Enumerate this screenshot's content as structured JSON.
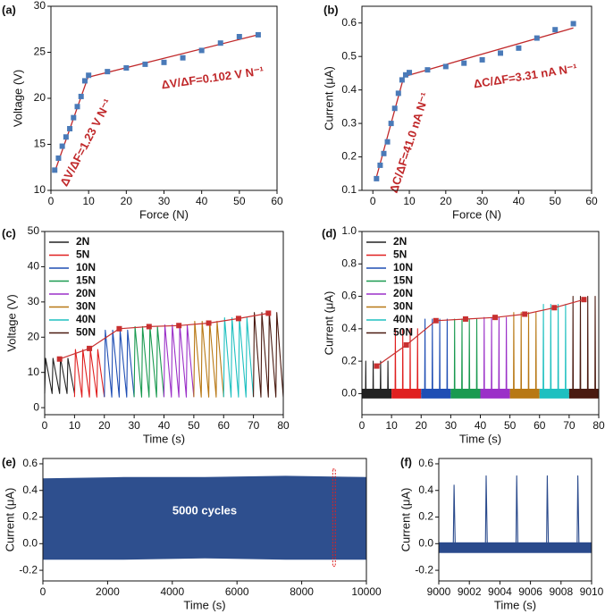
{
  "chart_data": [
    {
      "type": "scatter",
      "label": "(a)",
      "xlabel": "Force (N)",
      "ylabel": "Voltage (V)",
      "xlim": [
        0,
        60
      ],
      "xticks": [
        0,
        10,
        20,
        30,
        40,
        50,
        60
      ],
      "ylim": [
        10,
        30
      ],
      "yticks": [
        10,
        15,
        20,
        25,
        30
      ],
      "color": "#4a7ab8",
      "x": [
        1,
        2,
        3,
        4,
        5,
        6,
        7,
        8,
        9,
        10,
        15,
        20,
        25,
        30,
        35,
        40,
        45,
        50,
        55
      ],
      "values": [
        12.2,
        13.5,
        14.8,
        15.8,
        16.7,
        17.9,
        19.1,
        20.2,
        21.9,
        22.5,
        22.9,
        23.3,
        23.7,
        23.9,
        24.4,
        25.2,
        26.0,
        26.7,
        26.9
      ],
      "fits": [
        {
          "color": "#c0282a",
          "x": [
            1,
            10
          ],
          "values": [
            12.0,
            22.5
          ]
        },
        {
          "color": "#c0282a",
          "x": [
            10,
            55
          ],
          "values": [
            22.3,
            26.9
          ]
        }
      ],
      "annotations": [
        "ΔV/ΔF=1.23 V N⁻¹",
        "ΔV/ΔF=0.102 V N⁻¹"
      ]
    },
    {
      "type": "scatter",
      "label": "(b)",
      "xlabel": "Force (N)",
      "ylabel": "Current (μA)",
      "xlim": [
        -3,
        60
      ],
      "xticks": [
        0,
        10,
        20,
        30,
        40,
        50,
        60
      ],
      "ylim": [
        0.1,
        0.65
      ],
      "yticks": [
        0.1,
        0.2,
        0.3,
        0.4,
        0.5,
        0.6
      ],
      "color": "#4a7ab8",
      "x": [
        1,
        2,
        3,
        4,
        5,
        6,
        7,
        8,
        9,
        10,
        15,
        20,
        25,
        30,
        35,
        40,
        45,
        50,
        55
      ],
      "values": [
        0.135,
        0.175,
        0.21,
        0.245,
        0.3,
        0.345,
        0.39,
        0.43,
        0.445,
        0.452,
        0.46,
        0.47,
        0.48,
        0.49,
        0.51,
        0.525,
        0.555,
        0.58,
        0.598
      ],
      "fits": [
        {
          "color": "#c0282a",
          "x": [
            1,
            8.5
          ],
          "values": [
            0.14,
            0.44
          ]
        },
        {
          "color": "#c0282a",
          "x": [
            8.5,
            55
          ],
          "values": [
            0.44,
            0.585
          ]
        }
      ],
      "annotations": [
        "ΔC/ΔF=41.0 nA N⁻¹",
        "ΔC/ΔF=3.31 nA N⁻¹"
      ]
    },
    {
      "type": "line",
      "label": "(c)",
      "xlabel": "Time (s)",
      "ylabel": "Voltage (V)",
      "xlim": [
        0,
        80
      ],
      "xticks": [
        0,
        10,
        20,
        30,
        40,
        50,
        60,
        70,
        80
      ],
      "ylim": [
        -2,
        50
      ],
      "yticks": [
        0,
        10,
        20,
        30,
        40,
        50
      ],
      "series": [
        {
          "name": "2N",
          "color": "#222222",
          "x": [
            0,
            0.3,
            2.5,
            2.8,
            5,
            5.3,
            7.5,
            7.8,
            10
          ],
          "values": [
            4,
            14,
            4,
            14,
            4,
            14,
            4,
            14,
            4
          ]
        },
        {
          "name": "5N",
          "color": "#e02020",
          "x": [
            10,
            10.3,
            12.5,
            12.8,
            15,
            15.3,
            17.5,
            17.8,
            20
          ],
          "values": [
            3,
            16.5,
            3,
            16.5,
            3,
            16.5,
            3,
            16.5,
            3
          ]
        },
        {
          "name": "10N",
          "color": "#1f4eb4",
          "x": [
            20,
            20.3,
            22.5,
            22.8,
            25,
            25.3,
            27.5,
            27.8,
            30
          ],
          "values": [
            3,
            22,
            3,
            22,
            3,
            22,
            3,
            22,
            3
          ]
        },
        {
          "name": "15N",
          "color": "#1a9a50",
          "x": [
            30,
            30.3,
            32.5,
            32.8,
            35,
            35.3,
            37.5,
            37.8,
            40
          ],
          "values": [
            3,
            23,
            3,
            23,
            3,
            23,
            3,
            23,
            3
          ]
        },
        {
          "name": "20N",
          "color": "#9b30c8",
          "x": [
            40,
            40.3,
            42.5,
            42.8,
            45,
            45.3,
            47.5,
            47.8,
            50
          ],
          "values": [
            3,
            23.5,
            3,
            23.5,
            3,
            23.5,
            3,
            23.5,
            3
          ]
        },
        {
          "name": "30N",
          "color": "#b87814",
          "x": [
            50,
            50.3,
            52.5,
            52.8,
            55,
            55.3,
            57.5,
            57.8,
            60
          ],
          "values": [
            3,
            24.5,
            3,
            24.5,
            3,
            24.5,
            3,
            24.5,
            3
          ]
        },
        {
          "name": "40N",
          "color": "#1ec0c0",
          "x": [
            60,
            60.3,
            62.5,
            62.8,
            65,
            65.3,
            67.5,
            67.8,
            70
          ],
          "values": [
            3,
            25.5,
            3,
            25.5,
            3,
            25.5,
            3,
            25.5,
            3
          ]
        },
        {
          "name": "50N",
          "color": "#4a1a10",
          "x": [
            70,
            70.3,
            72.5,
            72.8,
            75,
            75.3,
            77.5,
            77.8,
            80
          ],
          "values": [
            3,
            27,
            3,
            27,
            3,
            27,
            3,
            27,
            3
          ]
        }
      ],
      "trend": {
        "color": "#c83030",
        "x": [
          5,
          15,
          25,
          35,
          45,
          55,
          65,
          75
        ],
        "values": [
          13.8,
          16.8,
          22.4,
          23.0,
          23.3,
          24.0,
          25.3,
          26.8
        ]
      }
    },
    {
      "type": "line",
      "label": "(d)",
      "xlabel": "Time (s)",
      "ylabel": "Current (μA)",
      "xlim": [
        0,
        80
      ],
      "xticks": [
        0,
        10,
        20,
        30,
        40,
        50,
        60,
        70,
        80
      ],
      "ylim": [
        -0.13,
        1
      ],
      "yticks": [
        {
          "value": 0,
          "label": "0.0"
        },
        0.2,
        0.4,
        0.6,
        0.8,
        {
          "value": 1,
          "label": "1.0"
        }
      ],
      "noise_band": [
        -0.03,
        0.03
      ],
      "series": [
        {
          "name": "2N",
          "color": "#222222",
          "x": [
            0,
            1.2,
            1.3,
            1.4,
            3.7,
            3.8,
            3.9,
            6.2,
            6.3,
            6.4,
            8.7,
            8.8,
            8.9,
            10
          ],
          "values": [
            0,
            0,
            0.2,
            0,
            0,
            0.2,
            0,
            0,
            0.2,
            0,
            0,
            0.2,
            0,
            0
          ]
        },
        {
          "name": "5N",
          "color": "#e02020",
          "x": [
            10,
            11.2,
            11.3,
            11.4,
            13.7,
            13.8,
            13.9,
            16.2,
            16.3,
            16.4,
            18.7,
            18.8,
            18.9,
            20
          ],
          "values": [
            0,
            0,
            0.4,
            0,
            0,
            0.4,
            0,
            0,
            0.4,
            0,
            0,
            0.4,
            0,
            0
          ]
        },
        {
          "name": "10N",
          "color": "#1f4eb4",
          "x": [
            20,
            21.2,
            21.3,
            21.4,
            23.7,
            23.8,
            23.9,
            26.2,
            26.3,
            26.4,
            28.7,
            28.8,
            28.9,
            30
          ],
          "values": [
            0,
            0,
            0.46,
            0,
            0,
            0.46,
            0,
            0,
            0.46,
            0,
            0,
            0.46,
            0,
            0
          ]
        },
        {
          "name": "15N",
          "color": "#1a9a50",
          "x": [
            30,
            31.2,
            31.3,
            31.4,
            33.7,
            33.8,
            33.9,
            36.2,
            36.3,
            36.4,
            38.7,
            38.8,
            38.9,
            40
          ],
          "values": [
            0,
            0,
            0.46,
            0,
            0,
            0.46,
            0,
            0,
            0.46,
            0,
            0,
            0.46,
            0,
            0
          ]
        },
        {
          "name": "20N",
          "color": "#9b30c8",
          "x": [
            40,
            41.2,
            41.3,
            41.4,
            43.7,
            43.8,
            43.9,
            46.2,
            46.3,
            46.4,
            48.7,
            48.8,
            48.9,
            50
          ],
          "values": [
            0,
            0,
            0.47,
            0,
            0,
            0.47,
            0,
            0,
            0.47,
            0,
            0,
            0.47,
            0,
            0
          ]
        },
        {
          "name": "30N",
          "color": "#b87814",
          "x": [
            50,
            51.2,
            51.3,
            51.4,
            53.7,
            53.8,
            53.9,
            56.2,
            56.3,
            56.4,
            58.7,
            58.8,
            58.9,
            60
          ],
          "values": [
            0,
            0,
            0.5,
            0,
            0,
            0.5,
            0,
            0,
            0.5,
            0,
            0,
            0.5,
            0,
            0
          ]
        },
        {
          "name": "40N",
          "color": "#1ec0c0",
          "x": [
            60,
            61.2,
            61.3,
            61.4,
            63.7,
            63.8,
            63.9,
            66.2,
            66.3,
            66.4,
            68.7,
            68.8,
            68.9,
            70
          ],
          "values": [
            0,
            0,
            0.55,
            0,
            0,
            0.55,
            0,
            0,
            0.55,
            0,
            0,
            0.55,
            0,
            0
          ]
        },
        {
          "name": "50N",
          "color": "#4a1a10",
          "x": [
            70,
            71.2,
            71.3,
            71.4,
            73.7,
            73.8,
            73.9,
            76.2,
            76.3,
            76.4,
            78.7,
            78.8,
            78.9,
            80
          ],
          "values": [
            0,
            0,
            0.6,
            0,
            0,
            0.6,
            0,
            0,
            0.6,
            0,
            0,
            0.6,
            0,
            0
          ]
        }
      ],
      "trend": {
        "color": "#c83030",
        "x": [
          5,
          15,
          25,
          35,
          45,
          55,
          65,
          75
        ],
        "values": [
          0.17,
          0.3,
          0.45,
          0.46,
          0.47,
          0.49,
          0.53,
          0.58
        ]
      }
    },
    {
      "type": "area",
      "label": "(e)",
      "xlabel": "Time (s)",
      "ylabel": "Current (μA)",
      "xlim": [
        0,
        10000
      ],
      "xticks": [
        0,
        2000,
        4000,
        6000,
        8000,
        10000
      ],
      "ylim": [
        -0.28,
        0.64
      ],
      "yticks": [
        -0.2,
        {
          "value": 0,
          "label": "0.0"
        },
        0.2,
        0.4,
        0.6
      ],
      "color": "#2e4f8e",
      "x": [
        0,
        2500,
        5000,
        7500,
        10000
      ],
      "upper": [
        0.49,
        0.5,
        0.5,
        0.51,
        0.5
      ],
      "lower": [
        -0.12,
        -0.12,
        -0.11,
        -0.12,
        -0.12
      ],
      "highlight": {
        "x": [
          8960,
          9040
        ],
        "y": [
          -0.17,
          0.56
        ]
      },
      "annotations": [
        "5000 cycles"
      ]
    },
    {
      "type": "line",
      "label": "(f)",
      "xlabel": "Time (s)",
      "ylabel": "Current (μA)",
      "xlim": [
        9000,
        9010
      ],
      "xticks": [
        9000,
        9002,
        9004,
        9006,
        9008,
        9010
      ],
      "ylim": [
        -0.28,
        0.64
      ],
      "yticks": [
        -0.2,
        {
          "value": 0,
          "label": "0.0"
        },
        0.2,
        0.4,
        0.6
      ],
      "noise_band": [
        -0.07,
        0.01
      ],
      "series": [
        {
          "color": "#2a4a8c",
          "x": [
            9000,
            9000.95,
            9001,
            9001.08,
            9003.05,
            9003.1,
            9003.18,
            9005.05,
            9005.1,
            9005.18,
            9007.05,
            9007.1,
            9007.18,
            9009.05,
            9009.1,
            9009.18,
            9010
          ],
          "values": [
            -0.03,
            -0.03,
            0.44,
            -0.06,
            -0.03,
            0.51,
            -0.06,
            -0.03,
            0.51,
            -0.06,
            -0.03,
            0.51,
            -0.06,
            -0.03,
            0.51,
            -0.06,
            -0.03
          ]
        }
      ]
    }
  ]
}
